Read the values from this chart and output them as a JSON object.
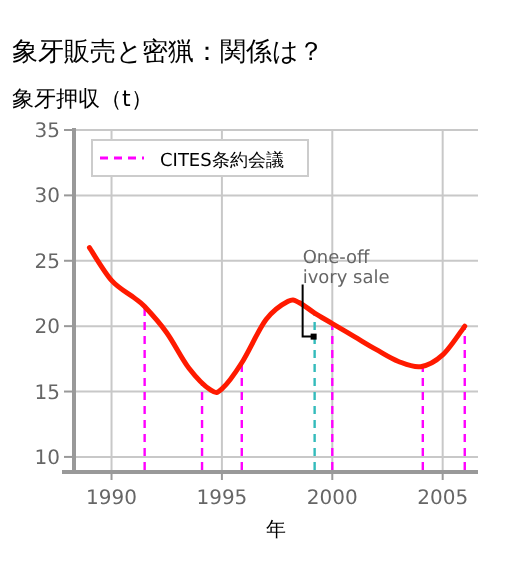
{
  "chart_data": {
    "type": "line",
    "title": "象牙販売と密猟：関係は？",
    "ylabel": "象牙押収（t）",
    "xlabel": "年",
    "x": [
      1989,
      1990,
      1991,
      1991.5,
      1992.5,
      1993.5,
      1994.5,
      1995,
      1995.9,
      1997,
      1998,
      1998.5,
      1999.2,
      2000,
      2001,
      2002,
      2003,
      2004,
      2005,
      2006
    ],
    "series": [
      {
        "color": "#ff1a00",
        "values": [
          26,
          23.5,
          22.2,
          21.5,
          19.5,
          16.8,
          15.1,
          15.2,
          17.2,
          20.5,
          21.9,
          21.8,
          21,
          20.2,
          19.2,
          18.2,
          17.3,
          16.9,
          17.8,
          20
        ]
      }
    ],
    "xlim": [
      1988.3,
      2006.6
    ],
    "xticks": [
      1990,
      1995,
      2000,
      2005
    ],
    "ylim": [
      9,
      35
    ],
    "yticks": [
      10,
      15,
      20,
      25,
      30,
      35
    ],
    "grid": true,
    "legend": "top left",
    "marker": "none",
    "line_style": "solid",
    "ref_lines": [
      {
        "axis": "x",
        "value": 1991.5,
        "label": "CITES条約会議",
        "color": "#ff00ff",
        "line_style": "dashed"
      },
      {
        "axis": "x",
        "value": 1994.1,
        "color": "#ff00ff",
        "line_style": "dashed"
      },
      {
        "axis": "x",
        "value": 1995.9,
        "color": "#ff00ff",
        "line_style": "dashed"
      },
      {
        "axis": "x",
        "value": 2000,
        "color": "#ff00ff",
        "line_style": "dashed"
      },
      {
        "axis": "x",
        "value": 2004.1,
        "color": "#ff00ff",
        "line_style": "dashed"
      },
      {
        "axis": "x",
        "value": 2006,
        "color": "#ff00ff",
        "line_style": "dashed"
      },
      {
        "axis": "x",
        "value": 1999.2,
        "color": "#33bbbb",
        "line_style": "dashed"
      }
    ],
    "annotations": [
      {
        "text": "One-off ivory sale",
        "x": 1999.2,
        "y": 19.2
      }
    ]
  }
}
